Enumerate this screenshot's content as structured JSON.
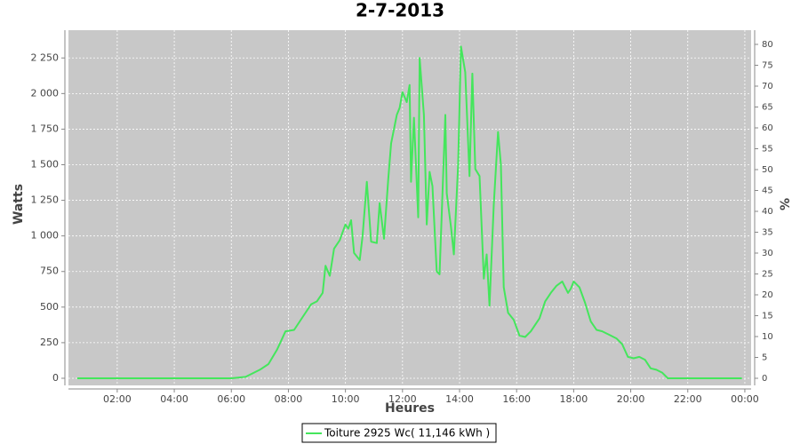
{
  "chart_data": {
    "type": "line",
    "title": "2-7-2013",
    "x_label": "Heures",
    "y_label": "Watts",
    "y2_label": "%",
    "x": [
      0.6,
      5.0,
      6.0,
      6.5,
      7.0,
      7.3,
      7.6,
      7.9,
      8.2,
      8.5,
      8.8,
      9.0,
      9.2,
      9.3,
      9.45,
      9.6,
      9.8,
      10.0,
      10.1,
      10.2,
      10.3,
      10.5,
      10.6,
      10.75,
      10.9,
      11.1,
      11.2,
      11.35,
      11.5,
      11.6,
      11.8,
      11.9,
      12.0,
      12.15,
      12.25,
      12.3,
      12.4,
      12.55,
      12.6,
      12.75,
      12.85,
      12.95,
      13.05,
      13.2,
      13.3,
      13.5,
      13.55,
      13.7,
      13.8,
      13.95,
      14.05,
      14.2,
      14.35,
      14.45,
      14.55,
      14.7,
      14.85,
      14.95,
      15.05,
      15.2,
      15.35,
      15.45,
      15.55,
      15.7,
      15.9,
      16.1,
      16.3,
      16.5,
      16.8,
      17.0,
      17.2,
      17.4,
      17.6,
      17.8,
      17.9,
      18.0,
      18.2,
      18.4,
      18.6,
      18.8,
      19.0,
      19.3,
      19.5,
      19.7,
      19.9,
      20.1,
      20.3,
      20.5,
      20.7,
      20.9,
      21.1,
      21.3,
      22.0,
      23.9
    ],
    "series": [
      {
        "name": "Toiture 2925 Wc( 11,146 kWh )",
        "color": "#44e65c",
        "values": [
          0,
          0,
          0,
          10,
          60,
          100,
          200,
          330,
          340,
          430,
          520,
          540,
          600,
          790,
          720,
          910,
          970,
          1080,
          1050,
          1110,
          880,
          830,
          1000,
          1380,
          960,
          950,
          1230,
          980,
          1400,
          1650,
          1850,
          1900,
          2010,
          1940,
          2060,
          1380,
          1830,
          1130,
          2250,
          1850,
          1080,
          1450,
          1350,
          750,
          730,
          1850,
          1300,
          1060,
          870,
          1500,
          2330,
          2150,
          1420,
          2140,
          1470,
          1420,
          700,
          870,
          510,
          1220,
          1730,
          1500,
          640,
          460,
          410,
          300,
          290,
          330,
          420,
          540,
          600,
          650,
          680,
          600,
          630,
          680,
          640,
          530,
          400,
          340,
          330,
          300,
          280,
          240,
          150,
          140,
          150,
          130,
          70,
          60,
          40,
          0,
          0,
          0
        ]
      }
    ],
    "xlim": [
      0.29,
      24.22
    ],
    "xticks": [
      {
        "value": 2,
        "label": "02:00"
      },
      {
        "value": 4,
        "label": "04:00"
      },
      {
        "value": 6,
        "label": "06:00"
      },
      {
        "value": 8,
        "label": "08:00"
      },
      {
        "value": 10,
        "label": "10:00"
      },
      {
        "value": 12,
        "label": "12:00"
      },
      {
        "value": 14,
        "label": "14:00"
      },
      {
        "value": 16,
        "label": "16:00"
      },
      {
        "value": 18,
        "label": "18:00"
      },
      {
        "value": 20,
        "label": "20:00"
      },
      {
        "value": 22,
        "label": "22:00"
      },
      {
        "value": 24,
        "label": "00:00"
      }
    ],
    "ylim": [
      -50,
      2445
    ],
    "yticks": [
      0,
      250,
      500,
      750,
      {
        "value": 1000,
        "label": "1 000"
      },
      {
        "value": 1250,
        "label": "1 250"
      },
      {
        "value": 1500,
        "label": "1 500"
      },
      {
        "value": 1750,
        "label": "1 750"
      },
      {
        "value": 2000,
        "label": "2 000"
      },
      {
        "value": 2250,
        "label": "2 250"
      }
    ],
    "y2lim": [
      -1.7,
      83.4
    ],
    "y2ticks": [
      0,
      5,
      10,
      15,
      20,
      25,
      30,
      35,
      40,
      45,
      50,
      55,
      60,
      65,
      70,
      75,
      80
    ],
    "grid": true,
    "legend": "bottom"
  }
}
